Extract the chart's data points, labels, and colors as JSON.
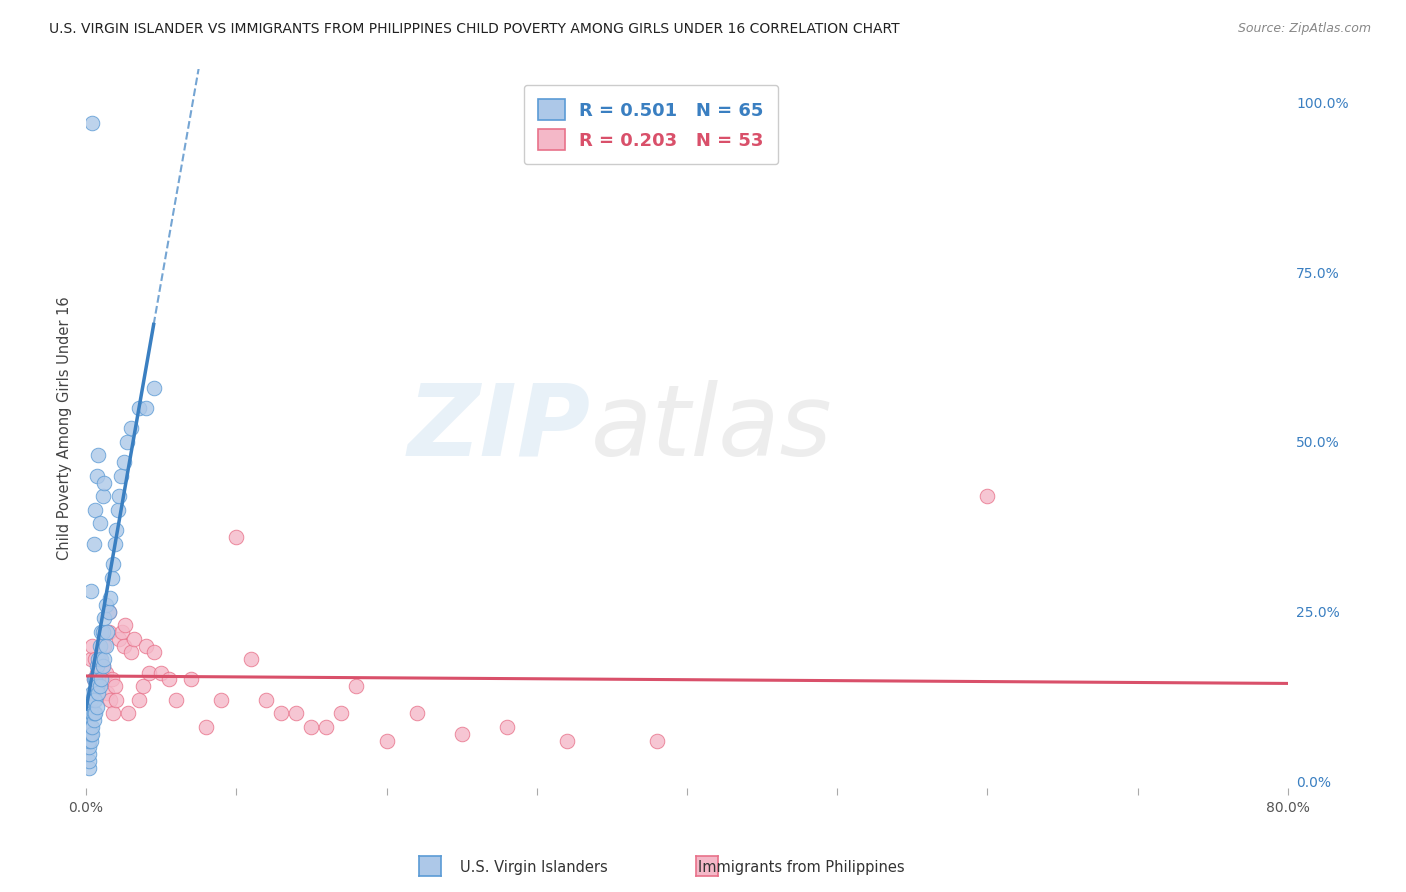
{
  "title": "U.S. VIRGIN ISLANDER VS IMMIGRANTS FROM PHILIPPINES CHILD POVERTY AMONG GIRLS UNDER 16 CORRELATION CHART",
  "source": "Source: ZipAtlas.com",
  "ylabel": "Child Poverty Among Girls Under 16",
  "xlim": [
    0.0,
    0.8
  ],
  "ylim": [
    -0.01,
    1.05
  ],
  "xticks": [
    0.0,
    0.1,
    0.2,
    0.3,
    0.4,
    0.5,
    0.6,
    0.7,
    0.8
  ],
  "xticklabels": [
    "0.0%",
    "",
    "",
    "",
    "",
    "",
    "",
    "",
    "80.0%"
  ],
  "yticks_right": [
    0.0,
    0.25,
    0.5,
    0.75,
    1.0
  ],
  "yticklabels_right": [
    "0.0%",
    "25.0%",
    "50.0%",
    "75.0%",
    "100.0%"
  ],
  "blue_R": 0.501,
  "blue_N": 65,
  "pink_R": 0.203,
  "pink_N": 53,
  "blue_color": "#adc8e8",
  "blue_edge_color": "#5b9bd5",
  "pink_color": "#f4b8c8",
  "pink_edge_color": "#e8728a",
  "blue_line_color": "#3a7fc1",
  "pink_line_color": "#d9506a",
  "blue_scatter_x": [
    0.002,
    0.002,
    0.002,
    0.002,
    0.002,
    0.002,
    0.002,
    0.002,
    0.003,
    0.003,
    0.003,
    0.003,
    0.003,
    0.004,
    0.004,
    0.004,
    0.004,
    0.005,
    0.005,
    0.005,
    0.005,
    0.006,
    0.006,
    0.006,
    0.007,
    0.007,
    0.007,
    0.008,
    0.008,
    0.009,
    0.009,
    0.01,
    0.01,
    0.01,
    0.011,
    0.011,
    0.012,
    0.012,
    0.013,
    0.013,
    0.014,
    0.015,
    0.016,
    0.017,
    0.018,
    0.019,
    0.02,
    0.021,
    0.022,
    0.023,
    0.025,
    0.027,
    0.03,
    0.035,
    0.04,
    0.045,
    0.003,
    0.005,
    0.006,
    0.007,
    0.008,
    0.009,
    0.011,
    0.012,
    0.004
  ],
  "blue_scatter_y": [
    0.02,
    0.03,
    0.04,
    0.05,
    0.06,
    0.07,
    0.08,
    0.09,
    0.06,
    0.07,
    0.08,
    0.1,
    0.12,
    0.07,
    0.08,
    0.1,
    0.13,
    0.09,
    0.1,
    0.12,
    0.15,
    0.1,
    0.12,
    0.15,
    0.11,
    0.14,
    0.17,
    0.13,
    0.18,
    0.14,
    0.2,
    0.15,
    0.18,
    0.22,
    0.17,
    0.22,
    0.18,
    0.24,
    0.2,
    0.26,
    0.22,
    0.25,
    0.27,
    0.3,
    0.32,
    0.35,
    0.37,
    0.4,
    0.42,
    0.45,
    0.47,
    0.5,
    0.52,
    0.55,
    0.55,
    0.58,
    0.28,
    0.35,
    0.4,
    0.45,
    0.48,
    0.38,
    0.42,
    0.44,
    0.97
  ],
  "pink_scatter_x": [
    0.003,
    0.004,
    0.005,
    0.006,
    0.007,
    0.008,
    0.009,
    0.01,
    0.011,
    0.012,
    0.013,
    0.014,
    0.015,
    0.016,
    0.017,
    0.018,
    0.019,
    0.02,
    0.022,
    0.024,
    0.025,
    0.026,
    0.028,
    0.03,
    0.032,
    0.035,
    0.038,
    0.04,
    0.042,
    0.045,
    0.05,
    0.055,
    0.06,
    0.07,
    0.08,
    0.09,
    0.1,
    0.11,
    0.12,
    0.13,
    0.14,
    0.15,
    0.16,
    0.17,
    0.18,
    0.2,
    0.22,
    0.25,
    0.28,
    0.32,
    0.38,
    0.6,
    0.015
  ],
  "pink_scatter_y": [
    0.18,
    0.2,
    0.15,
    0.18,
    0.16,
    0.14,
    0.18,
    0.15,
    0.17,
    0.2,
    0.16,
    0.13,
    0.22,
    0.12,
    0.15,
    0.1,
    0.14,
    0.12,
    0.21,
    0.22,
    0.2,
    0.23,
    0.1,
    0.19,
    0.21,
    0.12,
    0.14,
    0.2,
    0.16,
    0.19,
    0.16,
    0.15,
    0.12,
    0.15,
    0.08,
    0.12,
    0.36,
    0.18,
    0.12,
    0.1,
    0.1,
    0.08,
    0.08,
    0.1,
    0.14,
    0.06,
    0.1,
    0.07,
    0.08,
    0.06,
    0.06,
    0.42,
    0.25
  ],
  "watermark_zip": "ZIP",
  "watermark_atlas": "atlas",
  "background_color": "#ffffff",
  "grid_color": "#d8d8d8"
}
